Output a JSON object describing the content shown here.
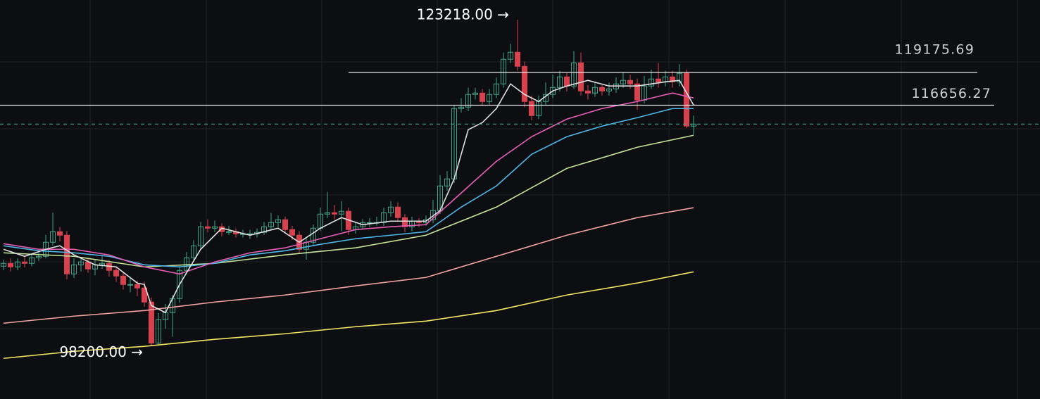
{
  "chart_data": {
    "type": "candlestick",
    "ylim": [
      94112,
      124730
    ],
    "up_color": "#3fa58a",
    "down_color": "#d9414f",
    "open": [
      104300,
      104520,
      104250,
      104630,
      104520,
      104950,
      105060,
      106140,
      106950,
      106680,
      103710,
      104410,
      104630,
      104090,
      104410,
      104520,
      103980,
      103550,
      102900,
      102900,
      102630,
      101550,
      98400,
      100200,
      100740,
      101820,
      103980,
      104950,
      105870,
      107330,
      107220,
      107330,
      106950,
      106950,
      106790,
      106790,
      106790,
      106900,
      107330,
      107650,
      107870,
      107110,
      106680,
      105600,
      106140,
      107220,
      108300,
      108410,
      108300,
      108520,
      107110,
      107330,
      107650,
      107650,
      107650,
      108410,
      108840,
      108030,
      107330,
      107760,
      107650,
      107870,
      108570,
      110460,
      111000,
      116400,
      116510,
      117480,
      117590,
      116940,
      117480,
      118290,
      120180,
      120720,
      119640,
      116940,
      115860,
      116940,
      117480,
      118020,
      118830,
      118130,
      119910,
      117750,
      117590,
      118020,
      117750,
      117910,
      118290,
      118560,
      118290,
      117050,
      118130,
      118670,
      118450,
      118830,
      118450,
      119100,
      115050
    ],
    "high": [
      104800,
      104900,
      104900,
      105000,
      105300,
      105500,
      106700,
      108410,
      107300,
      107000,
      104900,
      105000,
      104900,
      104800,
      105100,
      104800,
      104300,
      103900,
      103500,
      103200,
      103100,
      101900,
      100700,
      101400,
      102100,
      104300,
      105400,
      106300,
      107700,
      107900,
      107800,
      107600,
      107400,
      107200,
      107100,
      107100,
      107200,
      107700,
      108400,
      108200,
      108100,
      107400,
      107000,
      106500,
      107500,
      108800,
      110000,
      109000,
      109300,
      108800,
      107700,
      107900,
      108000,
      108100,
      108800,
      109300,
      109200,
      108300,
      108100,
      108000,
      108200,
      109400,
      111300,
      111600,
      116700,
      117200,
      118000,
      118000,
      117900,
      117900,
      118800,
      120700,
      121370,
      123218,
      120000,
      117400,
      117400,
      118400,
      119000,
      119300,
      119100,
      120800,
      120700,
      118200,
      118400,
      118200,
      118400,
      118800,
      119200,
      119000,
      118700,
      118900,
      119400,
      119900,
      119300,
      119300,
      119800,
      119400,
      115860
    ],
    "low": [
      104000,
      103900,
      104000,
      104200,
      104300,
      104700,
      104900,
      105900,
      106200,
      103300,
      103400,
      103900,
      103800,
      103600,
      104100,
      103500,
      103100,
      102500,
      102300,
      102000,
      101200,
      98200,
      98200,
      99500,
      98900,
      101500,
      103700,
      104700,
      105600,
      106900,
      106900,
      106600,
      106700,
      106500,
      106500,
      106400,
      106500,
      106700,
      107100,
      107300,
      106800,
      106300,
      105300,
      104800,
      105900,
      107000,
      108000,
      107900,
      107000,
      106700,
      106800,
      107100,
      107300,
      107400,
      107400,
      108100,
      107700,
      106900,
      107000,
      107300,
      107400,
      107600,
      108300,
      110100,
      110700,
      116100,
      116200,
      117100,
      116600,
      116700,
      117200,
      118000,
      119900,
      119300,
      116500,
      115500,
      115600,
      116700,
      117200,
      117700,
      117700,
      117900,
      117400,
      117100,
      117300,
      117400,
      117400,
      117600,
      118000,
      117900,
      116300,
      116800,
      117900,
      118000,
      118100,
      118000,
      118100,
      114900,
      114400
    ],
    "close": [
      104520,
      104250,
      104630,
      104520,
      104950,
      105060,
      106140,
      106950,
      106680,
      103710,
      104410,
      104630,
      104090,
      104410,
      104520,
      103980,
      103550,
      102900,
      102900,
      102630,
      101550,
      98400,
      100200,
      100740,
      101820,
      103980,
      104950,
      105870,
      107330,
      107220,
      107330,
      106950,
      106950,
      106790,
      106790,
      106790,
      106900,
      107330,
      107650,
      107870,
      107110,
      106680,
      105600,
      106140,
      107220,
      108300,
      108410,
      108300,
      108520,
      107110,
      107330,
      107650,
      107650,
      107650,
      108410,
      108840,
      108030,
      107330,
      107760,
      107650,
      107870,
      108570,
      110460,
      111000,
      116400,
      116510,
      117480,
      117590,
      116940,
      117480,
      118290,
      120180,
      120720,
      119640,
      116940,
      115860,
      116940,
      117480,
      118020,
      118830,
      118130,
      119910,
      117750,
      117590,
      118020,
      117750,
      117910,
      118290,
      118560,
      118290,
      117050,
      118130,
      118670,
      118450,
      118830,
      118450,
      119100,
      115050,
      115210
    ],
    "moving_averages": [
      {
        "color": "#f5e663",
        "x": [
          0,
          10,
          20,
          30,
          40,
          50,
          60,
          70,
          80,
          90,
          98
        ],
        "values": [
          97230,
          97770,
          98150,
          98690,
          99120,
          99660,
          100090,
          100900,
          102090,
          103010,
          103870
        ]
      },
      {
        "color": "#f4a3a3",
        "x": [
          0,
          10,
          20,
          30,
          40,
          50,
          60,
          70,
          80,
          90,
          98
        ],
        "values": [
          99930,
          100470,
          100900,
          101550,
          102090,
          102790,
          103440,
          105060,
          106680,
          108030,
          108790
        ]
      },
      {
        "color": "#c6e39a",
        "x": [
          0,
          10,
          20,
          30,
          40,
          50,
          60,
          70,
          80,
          90,
          98
        ],
        "values": [
          105330,
          105060,
          104250,
          104520,
          105170,
          105710,
          106680,
          108840,
          111810,
          113430,
          114350
        ]
      },
      {
        "color": "#4fb8e8",
        "x": [
          0,
          5,
          10,
          15,
          20,
          25,
          30,
          35,
          40,
          45,
          50,
          55,
          60,
          65,
          70,
          75,
          80,
          85,
          90,
          95,
          98
        ],
        "values": [
          105870,
          105490,
          105330,
          105060,
          104410,
          104250,
          104520,
          105170,
          105490,
          105980,
          106410,
          106680,
          106950,
          108840,
          110460,
          112890,
          114240,
          115050,
          115700,
          116400,
          116400
        ]
      },
      {
        "color": "#e85fb8",
        "x": [
          0,
          5,
          10,
          15,
          20,
          25,
          30,
          35,
          40,
          45,
          50,
          55,
          60,
          65,
          70,
          75,
          80,
          85,
          90,
          95,
          98
        ],
        "values": [
          106030,
          105600,
          105600,
          105170,
          104250,
          103710,
          104630,
          105330,
          105710,
          106410,
          107110,
          107330,
          107490,
          109920,
          112350,
          114240,
          115590,
          116400,
          116940,
          117590,
          117210
        ]
      },
      {
        "color": "#e0e0e0",
        "x": [
          0,
          3,
          6,
          8,
          10,
          13,
          16,
          19,
          20,
          21,
          23,
          25,
          28,
          31,
          35,
          39,
          42,
          45,
          48,
          51,
          55,
          60,
          62,
          64,
          66,
          68,
          70,
          72,
          74,
          76,
          78,
          80,
          83,
          86,
          90,
          94,
          96,
          98
        ],
        "values": [
          105600,
          105060,
          105600,
          105870,
          105170,
          104410,
          104250,
          103010,
          102900,
          101280,
          100740,
          102900,
          105600,
          107220,
          106680,
          107220,
          106140,
          107220,
          108030,
          107490,
          107760,
          107760,
          108570,
          111000,
          114780,
          115320,
          116400,
          118290,
          117480,
          116940,
          117750,
          118130,
          118560,
          118130,
          118130,
          118450,
          118560,
          116670
        ]
      }
    ],
    "price_lines": [
      {
        "value": 119175.69,
        "from": 49
      },
      {
        "value": 116656.27
      }
    ],
    "last_price": {
      "value": 115210,
      "color": "#3fa58a"
    },
    "annotations": [
      {
        "value": 123218,
        "label": "123218.00 →",
        "x": 73
      },
      {
        "value": 98200,
        "label": "98200.00 →",
        "x": 21
      }
    ]
  }
}
